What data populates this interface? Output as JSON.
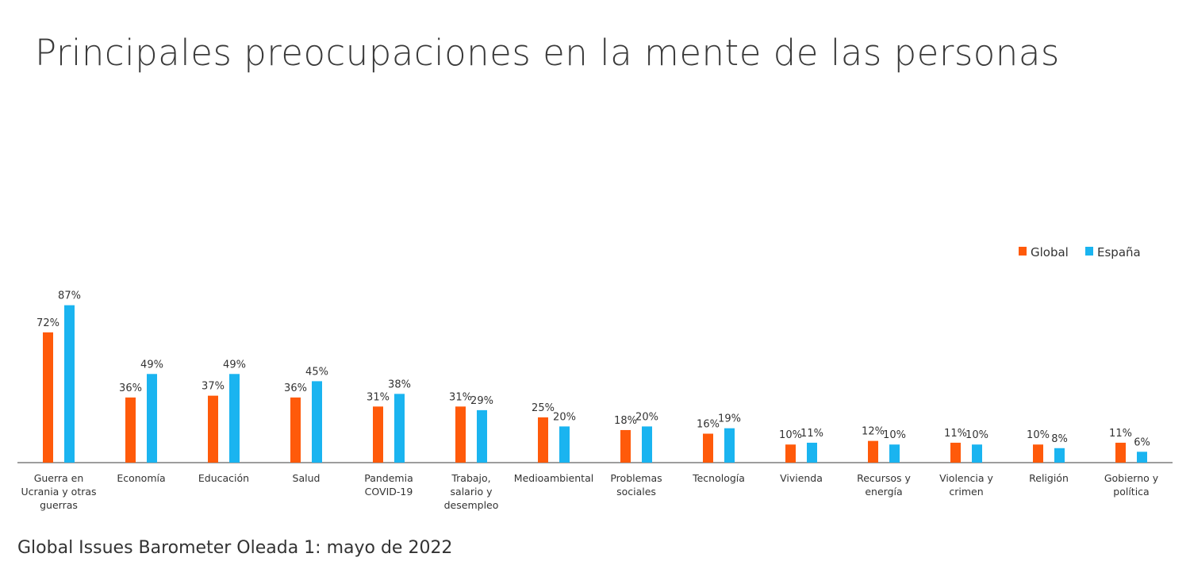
{
  "chart_data": {
    "type": "bar",
    "title": "Principales preocupaciones en la mente de las personas",
    "source": "Global Issues Barometer Oleada 1: mayo de 2022",
    "categories": [
      [
        "Guerra en",
        "Ucrania y otras",
        "guerras"
      ],
      [
        "Economía"
      ],
      [
        "Educación"
      ],
      [
        "Salud"
      ],
      [
        "Pandemia",
        "COVID-19"
      ],
      [
        "Trabajo,",
        "salario y",
        "desempleo"
      ],
      [
        "Medioambiental"
      ],
      [
        "Problemas",
        "sociales"
      ],
      [
        "Tecnología"
      ],
      [
        "Vivienda"
      ],
      [
        "Recursos y",
        "energía"
      ],
      [
        "Violencia y",
        "crimen"
      ],
      [
        "Religión"
      ],
      [
        "Gobierno y",
        "política"
      ]
    ],
    "series": [
      {
        "name": "Global",
        "color": "#ff5a0a",
        "values": [
          72,
          36,
          37,
          36,
          31,
          31,
          25,
          18,
          16,
          10,
          12,
          11,
          10,
          11
        ]
      },
      {
        "name": "España",
        "color": "#1ab4f0",
        "values": [
          87,
          49,
          49,
          45,
          38,
          29,
          20,
          20,
          19,
          11,
          10,
          10,
          8,
          6
        ]
      }
    ],
    "value_suffix": "%",
    "ylim": [
      0,
      90
    ],
    "grid": false,
    "legend_position": "top-right",
    "ylabel": "",
    "xlabel": ""
  }
}
